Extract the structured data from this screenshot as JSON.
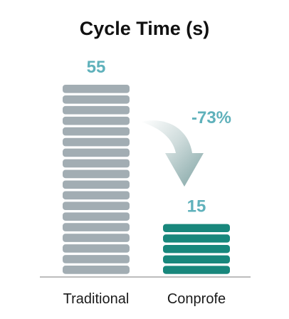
{
  "chart_data": {
    "type": "bar",
    "title": "Cycle Time (s)",
    "categories": [
      "Traditional",
      "Conprofe"
    ],
    "values": [
      55,
      15
    ],
    "value_labels": [
      "55",
      "15"
    ],
    "ylim": [
      0,
      55
    ],
    "grid": false,
    "bar_colors": [
      "#a2adb3",
      "#18877c"
    ],
    "label_color": "#5fb1bb",
    "axis_color": "#bdbdbd",
    "annotation": {
      "text": "-73%",
      "from": "Traditional",
      "to": "Conprofe",
      "arrow": "curved-down-arrow-icon"
    }
  }
}
